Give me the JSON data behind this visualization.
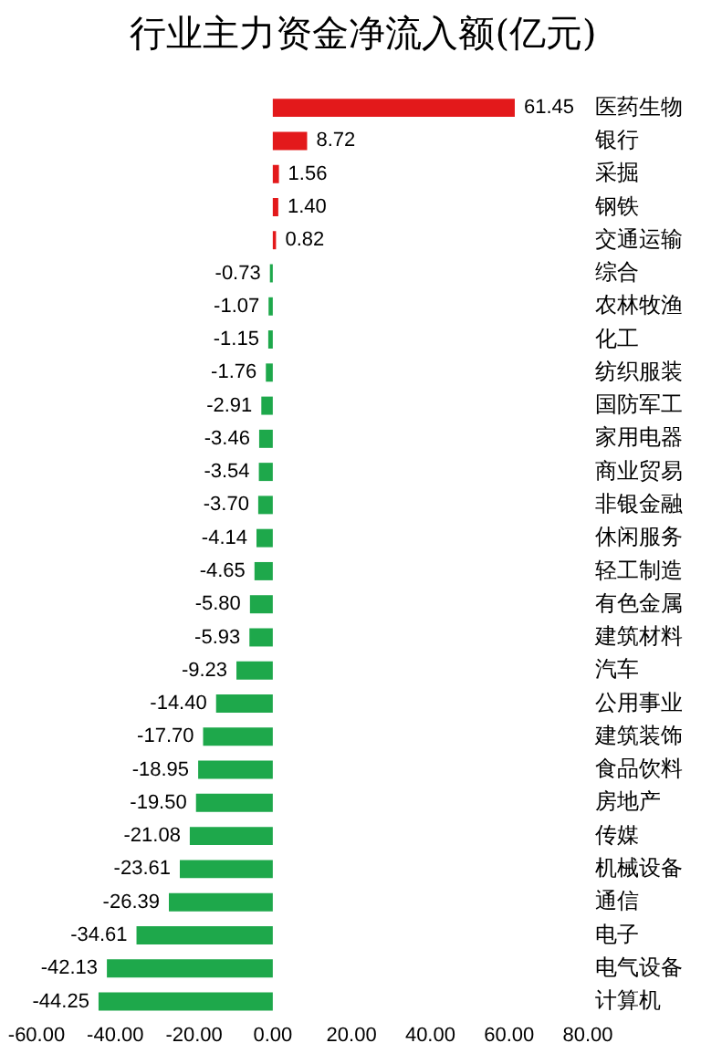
{
  "chart_data": {
    "type": "bar",
    "orientation": "horizontal",
    "title": "行业主力资金净流入额(亿元)",
    "categories": [
      "医药生物",
      "银行",
      "采掘",
      "钢铁",
      "交通运输",
      "综合",
      "农林牧渔",
      "化工",
      "纺织服装",
      "国防军工",
      "家用电器",
      "商业贸易",
      "非银金融",
      "休闲服务",
      "轻工制造",
      "有色金属",
      "建筑材料",
      "汽车",
      "公用事业",
      "建筑装饰",
      "食品饮料",
      "房地产",
      "传媒",
      "机械设备",
      "通信",
      "电子",
      "电气设备",
      "计算机"
    ],
    "values": [
      61.45,
      8.72,
      1.56,
      1.4,
      0.82,
      -0.73,
      -1.07,
      -1.15,
      -1.76,
      -2.91,
      -3.46,
      -3.54,
      -3.7,
      -4.14,
      -4.65,
      -5.8,
      -5.93,
      -9.23,
      -14.4,
      -17.7,
      -18.95,
      -19.5,
      -21.08,
      -23.61,
      -26.39,
      -34.61,
      -42.13,
      -44.25
    ],
    "value_labels": [
      "61.45",
      "8.72",
      "1.56",
      "1.40",
      "0.82",
      "-0.73",
      "-1.07",
      "-1.15",
      "-1.76",
      "-2.91",
      "-3.46",
      "-3.54",
      "-3.70",
      "-4.14",
      "-4.65",
      "-5.80",
      "-5.93",
      "-9.23",
      "-14.40",
      "-17.70",
      "-18.95",
      "-19.50",
      "-21.08",
      "-23.61",
      "-26.39",
      "-34.61",
      "-42.13",
      "-44.25"
    ],
    "colors": [
      "#e3191b",
      "#e3191b",
      "#e3191b",
      "#e3191b",
      "#e3191b",
      "#1ea84b",
      "#1ea84b",
      "#1ea84b",
      "#1ea84b",
      "#1ea84b",
      "#1ea84b",
      "#1ea84b",
      "#1ea84b",
      "#1ea84b",
      "#1ea84b",
      "#1ea84b",
      "#1ea84b",
      "#1ea84b",
      "#1ea84b",
      "#1ea84b",
      "#1ea84b",
      "#1ea84b",
      "#1ea84b",
      "#1ea84b",
      "#1ea84b",
      "#1ea84b",
      "#1ea84b",
      "#1ea84b"
    ],
    "xlim": [
      -60,
      80
    ],
    "xticks": [
      {
        "value": -60,
        "label": "-60.00"
      },
      {
        "value": -40,
        "label": "-40.00"
      },
      {
        "value": -20,
        "label": "-20.00"
      },
      {
        "value": 0,
        "label": "0.00"
      },
      {
        "value": 20,
        "label": "20.00"
      },
      {
        "value": 40,
        "label": "40.00"
      },
      {
        "value": 60,
        "label": "60.00"
      },
      {
        "value": 80,
        "label": "80.00"
      }
    ],
    "grid": false,
    "legend": false
  }
}
